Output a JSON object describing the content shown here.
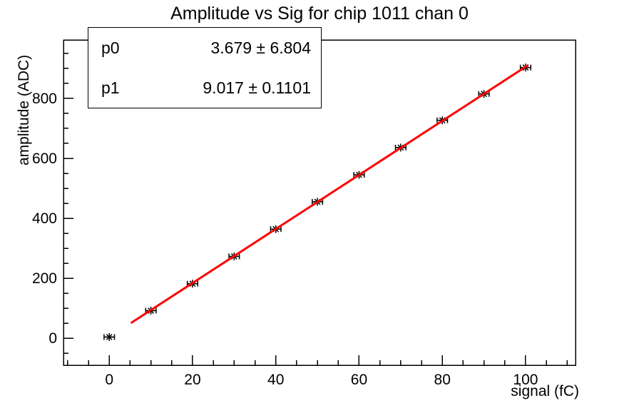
{
  "title": "Amplitude vs Sig for chip 1011 chan 0",
  "stats": {
    "rows": [
      {
        "name": "p0",
        "value": "3.679 ± 6.804"
      },
      {
        "name": "p1",
        "value": "9.017 ± 0.1101"
      }
    ]
  },
  "chart_data": {
    "type": "scatter",
    "title": "Amplitude vs Sig for chip 1011 chan 0",
    "xlabel": "signal (fC)",
    "ylabel": "amplitude (ADC)",
    "xlim": [
      -11,
      112
    ],
    "ylim": [
      -90,
      995
    ],
    "grid": false,
    "x_major_ticks": [
      0,
      20,
      40,
      60,
      80,
      100
    ],
    "x_minor_step": 5,
    "y_major_ticks": [
      0,
      200,
      400,
      600,
      800
    ],
    "y_minor_step": 50,
    "x": [
      0,
      10,
      20,
      30,
      40,
      50,
      60,
      70,
      80,
      90,
      100
    ],
    "y": [
      4,
      92,
      182,
      273,
      364,
      455,
      545,
      636,
      727,
      815,
      903
    ],
    "x_err": 1.25,
    "marker": "asterisk",
    "marker_color": "#000000",
    "frame_color": "#000000",
    "background": "#ffffff",
    "fit": {
      "name": "linear",
      "p0": 3.679,
      "p1": 9.017,
      "x_start": 5.2,
      "x_end": 100.6,
      "color": "#ff0000",
      "width": 3
    }
  }
}
